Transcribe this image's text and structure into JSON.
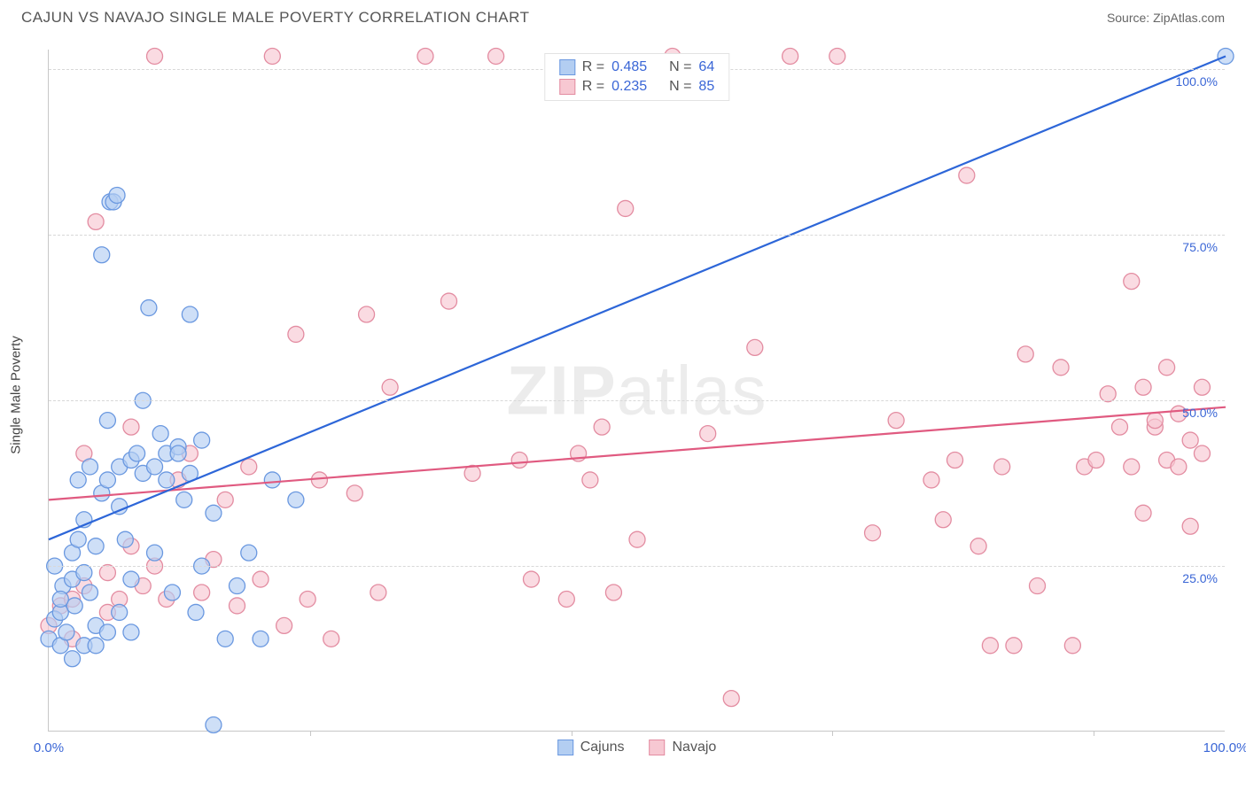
{
  "title": "CAJUN VS NAVAJO SINGLE MALE POVERTY CORRELATION CHART",
  "source": "Source: ZipAtlas.com",
  "y_axis_label": "Single Male Poverty",
  "watermark": {
    "part1": "ZIP",
    "part2": "atlas"
  },
  "chart": {
    "type": "scatter",
    "xlim": [
      0,
      100
    ],
    "ylim": [
      0,
      103
    ],
    "x_ticks": [
      0,
      100
    ],
    "x_tick_labels": [
      "0.0%",
      "100.0%"
    ],
    "x_minor_ticks": [
      22.2,
      44.4,
      66.6,
      88.8
    ],
    "y_ticks": [
      25,
      50,
      75,
      100
    ],
    "y_tick_labels": [
      "25.0%",
      "50.0%",
      "75.0%",
      "100.0%"
    ],
    "grid_color": "#d8d8d8",
    "axis_color": "#c7c7c7",
    "background_color": "#ffffff",
    "tick_label_color": "#3a66d6",
    "marker_radius": 9,
    "marker_stroke_width": 1.3,
    "series": [
      {
        "name": "Cajuns",
        "fill": "#b3cef2",
        "stroke": "#6a98e0",
        "line_color": "#2d66d8",
        "R": "0.485",
        "N": "64",
        "trend": {
          "x1": 0,
          "y1": 29,
          "x2": 100,
          "y2": 102
        },
        "points": [
          [
            0,
            14
          ],
          [
            0.5,
            17
          ],
          [
            1,
            13
          ],
          [
            1,
            18
          ],
          [
            1.2,
            22
          ],
          [
            1.5,
            15
          ],
          [
            2,
            23
          ],
          [
            2,
            27
          ],
          [
            2.2,
            19
          ],
          [
            2.5,
            38
          ],
          [
            2.5,
            29
          ],
          [
            3,
            32
          ],
          [
            3,
            24
          ],
          [
            3.5,
            21
          ],
          [
            3.5,
            40
          ],
          [
            4,
            28
          ],
          [
            4,
            16
          ],
          [
            4.5,
            36
          ],
          [
            4.5,
            72
          ],
          [
            5,
            38
          ],
          [
            5,
            47
          ],
          [
            5.2,
            80
          ],
          [
            5.5,
            80
          ],
          [
            5.8,
            81
          ],
          [
            6,
            34
          ],
          [
            6,
            40
          ],
          [
            6.5,
            29
          ],
          [
            7,
            41
          ],
          [
            7,
            23
          ],
          [
            7.5,
            42
          ],
          [
            8,
            39
          ],
          [
            8,
            50
          ],
          [
            8.5,
            64
          ],
          [
            9,
            40
          ],
          [
            9,
            27
          ],
          [
            9.5,
            45
          ],
          [
            10,
            42
          ],
          [
            10,
            38
          ],
          [
            10.5,
            21
          ],
          [
            11,
            43
          ],
          [
            11,
            42
          ],
          [
            11.5,
            35
          ],
          [
            12,
            39
          ],
          [
            12,
            63
          ],
          [
            12.5,
            18
          ],
          [
            13,
            44
          ],
          [
            13,
            25
          ],
          [
            14,
            1
          ],
          [
            14,
            33
          ],
          [
            15,
            14
          ],
          [
            16,
            22
          ],
          [
            17,
            27
          ],
          [
            18,
            14
          ],
          [
            19,
            38
          ],
          [
            21,
            35
          ],
          [
            2,
            11
          ],
          [
            3,
            13
          ],
          [
            5,
            15
          ],
          [
            6,
            18
          ],
          [
            1,
            20
          ],
          [
            0.5,
            25
          ],
          [
            4,
            13
          ],
          [
            7,
            15
          ],
          [
            100,
            102
          ]
        ]
      },
      {
        "name": "Navajo",
        "fill": "#f7c8d2",
        "stroke": "#e38ca1",
        "line_color": "#e05a80",
        "R": "0.235",
        "N": "85",
        "trend": {
          "x1": 0,
          "y1": 35,
          "x2": 100,
          "y2": 49
        },
        "points": [
          [
            0,
            16
          ],
          [
            1,
            19
          ],
          [
            2,
            14
          ],
          [
            2,
            20
          ],
          [
            3,
            22
          ],
          [
            3,
            42
          ],
          [
            4,
            77
          ],
          [
            5,
            24
          ],
          [
            5,
            18
          ],
          [
            6,
            20
          ],
          [
            7,
            28
          ],
          [
            7,
            46
          ],
          [
            8,
            22
          ],
          [
            9,
            25
          ],
          [
            9,
            102
          ],
          [
            10,
            20
          ],
          [
            11,
            38
          ],
          [
            12,
            42
          ],
          [
            13,
            21
          ],
          [
            14,
            26
          ],
          [
            15,
            35
          ],
          [
            16,
            19
          ],
          [
            17,
            40
          ],
          [
            18,
            23
          ],
          [
            19,
            102
          ],
          [
            20,
            16
          ],
          [
            21,
            60
          ],
          [
            22,
            20
          ],
          [
            23,
            38
          ],
          [
            24,
            14
          ],
          [
            26,
            36
          ],
          [
            27,
            63
          ],
          [
            28,
            21
          ],
          [
            29,
            52
          ],
          [
            32,
            102
          ],
          [
            34,
            65
          ],
          [
            36,
            39
          ],
          [
            38,
            102
          ],
          [
            40,
            41
          ],
          [
            41,
            23
          ],
          [
            44,
            20
          ],
          [
            45,
            42
          ],
          [
            46,
            38
          ],
          [
            47,
            46
          ],
          [
            48,
            21
          ],
          [
            49,
            79
          ],
          [
            50,
            29
          ],
          [
            53,
            102
          ],
          [
            56,
            45
          ],
          [
            58,
            5
          ],
          [
            60,
            58
          ],
          [
            63,
            102
          ],
          [
            67,
            102
          ],
          [
            70,
            30
          ],
          [
            72,
            47
          ],
          [
            75,
            38
          ],
          [
            76,
            32
          ],
          [
            77,
            41
          ],
          [
            78,
            84
          ],
          [
            79,
            28
          ],
          [
            80,
            13
          ],
          [
            81,
            40
          ],
          [
            82,
            13
          ],
          [
            83,
            57
          ],
          [
            84,
            22
          ],
          [
            86,
            55
          ],
          [
            87,
            13
          ],
          [
            88,
            40
          ],
          [
            89,
            41
          ],
          [
            90,
            51
          ],
          [
            91,
            46
          ],
          [
            92,
            40
          ],
          [
            92,
            68
          ],
          [
            93,
            33
          ],
          [
            93,
            52
          ],
          [
            94,
            46
          ],
          [
            94,
            47
          ],
          [
            95,
            41
          ],
          [
            95,
            55
          ],
          [
            96,
            48
          ],
          [
            96,
            40
          ],
          [
            97,
            44
          ],
          [
            97,
            31
          ],
          [
            98,
            52
          ],
          [
            98,
            42
          ]
        ]
      }
    ]
  },
  "legend_top_labels": {
    "R": "R =",
    "N": "N ="
  },
  "legend_bottom": [
    "Cajuns",
    "Navajo"
  ]
}
